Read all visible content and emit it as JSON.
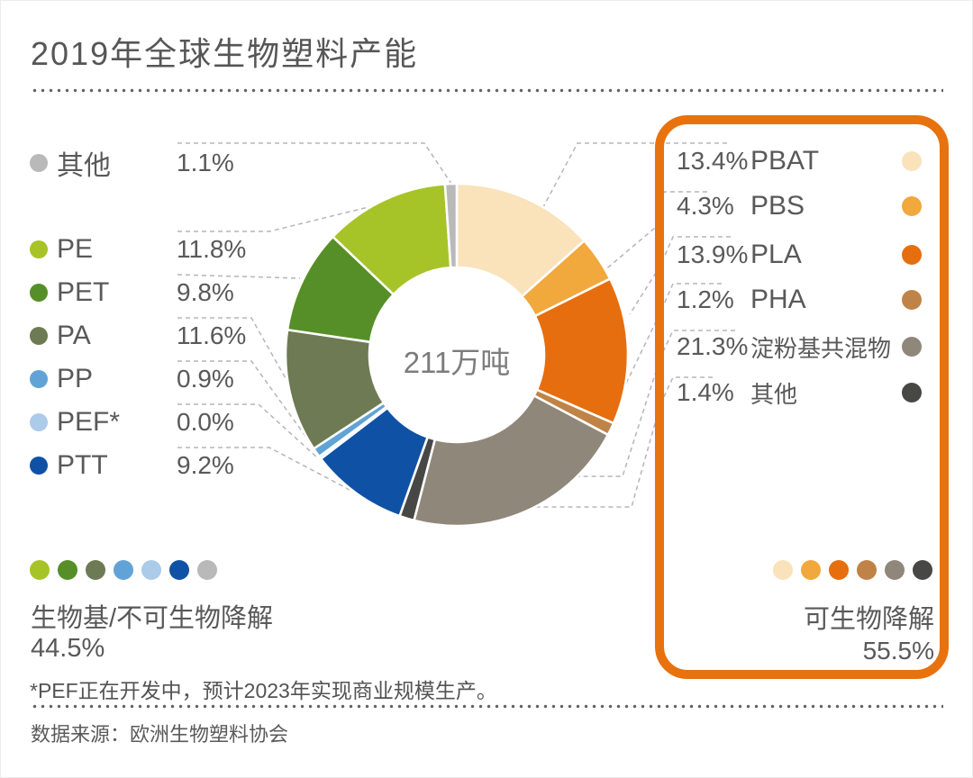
{
  "title": "2019年全球生物塑料产能",
  "footnote": "*PEF正在开发中，预计2023年实现商业规模生产。",
  "source": "数据来源：欧洲生物塑料协会",
  "colors": {
    "accent_orange": "#e7720e",
    "leader_line": "#b5b5b5",
    "text": "#595959"
  },
  "chart_data": {
    "type": "pie",
    "subtype": "donut",
    "title": "2019年全球生物塑料产能",
    "center_total": "211万吨",
    "value_unit": "%",
    "order": "clockwise-from-top",
    "series": [
      {
        "name": "PBAT",
        "value": 13.4,
        "color": "#fae2bb",
        "group": "可生物降解"
      },
      {
        "name": "PBS",
        "value": 4.3,
        "color": "#f1a83c",
        "group": "可生物降解"
      },
      {
        "name": "PLA",
        "value": 13.9,
        "color": "#e66e0e",
        "group": "可生物降解"
      },
      {
        "name": "PHA",
        "value": 1.2,
        "color": "#c08347",
        "group": "可生物降解"
      },
      {
        "name": "淀粉基共混物",
        "value": 21.3,
        "color": "#8f8779",
        "group": "可生物降解"
      },
      {
        "name": "其他",
        "value": 1.4,
        "color": "#474745",
        "group": "可生物降解"
      },
      {
        "name": "PTT",
        "value": 9.2,
        "color": "#0f52a5",
        "group": "生物基/不可生物降解"
      },
      {
        "name": "PEF*",
        "value": 0.0,
        "color": "#abcbe9",
        "group": "生物基/不可生物降解"
      },
      {
        "name": "PP",
        "value": 0.9,
        "color": "#61a3d6",
        "group": "生物基/不可生物降解"
      },
      {
        "name": "PA",
        "value": 11.6,
        "color": "#6d7a53",
        "group": "生物基/不可生物降解"
      },
      {
        "name": "PET",
        "value": 9.8,
        "color": "#568f27",
        "group": "生物基/不可生物降解"
      },
      {
        "name": "PE",
        "value": 11.8,
        "color": "#a6c428",
        "group": "生物基/不可生物降解"
      },
      {
        "name": "其他",
        "value": 1.1,
        "color": "#b9b9b9",
        "group": "生物基/不可生物降解"
      }
    ]
  },
  "left_legend": {
    "items": [
      {
        "label": "其他",
        "value": "1.1%",
        "color": "#b9b9b9"
      },
      {
        "label": "PE",
        "value": "11.8%",
        "color": "#a6c428"
      },
      {
        "label": "PET",
        "value": "9.8%",
        "color": "#568f27"
      },
      {
        "label": "PA",
        "value": "11.6%",
        "color": "#6d7a53"
      },
      {
        "label": "PP",
        "value": "0.9%",
        "color": "#61a3d6"
      },
      {
        "label": "PEF*",
        "value": "0.0%",
        "color": "#abcbe9"
      },
      {
        "label": "PTT",
        "value": "9.2%",
        "color": "#0f52a5"
      }
    ]
  },
  "right_legend": {
    "items": [
      {
        "value": "13.4%",
        "label": "PBAT",
        "color": "#fae2bb"
      },
      {
        "value": "4.3%",
        "label": "PBS",
        "color": "#f1a83c"
      },
      {
        "value": "13.9%",
        "label": "PLA",
        "color": "#e66e0e"
      },
      {
        "value": "1.2%",
        "label": "PHA",
        "color": "#c08347"
      },
      {
        "value": "21.3%",
        "label": "淀粉基共混物",
        "color": "#8f8779"
      },
      {
        "value": "1.4%",
        "label": "其他",
        "color": "#474745"
      }
    ]
  },
  "groups": {
    "bio_based": {
      "label": "生物基/不可生物降解",
      "share": "44.5%",
      "dot_colors": [
        "#a6c428",
        "#568f27",
        "#6d7a53",
        "#61a3d6",
        "#abcbe9",
        "#0f52a5",
        "#b9b9b9"
      ]
    },
    "biodegradable": {
      "label": "可生物降解",
      "share": "55.5%",
      "dot_colors": [
        "#fae2bb",
        "#f1a83c",
        "#e66e0e",
        "#c08347",
        "#8f8779",
        "#474745"
      ]
    }
  }
}
